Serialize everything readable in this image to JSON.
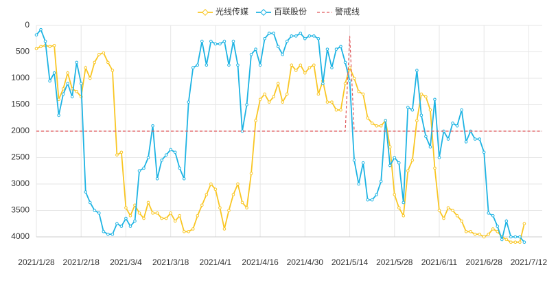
{
  "chart_data": {
    "type": "line",
    "categories": [
      "2021/1/28",
      null,
      null,
      null,
      null,
      null,
      null,
      null,
      null,
      null,
      "2021/2/18",
      null,
      null,
      null,
      null,
      null,
      null,
      null,
      null,
      null,
      "2021/3/4",
      null,
      null,
      null,
      null,
      null,
      null,
      null,
      null,
      null,
      "2021/3/18",
      null,
      null,
      null,
      null,
      null,
      null,
      null,
      null,
      null,
      "2021/4/1",
      null,
      null,
      null,
      null,
      null,
      null,
      null,
      null,
      null,
      "2021/4/16",
      null,
      null,
      null,
      null,
      null,
      null,
      null,
      null,
      null,
      "2021/4/30",
      null,
      null,
      null,
      null,
      null,
      null,
      null,
      null,
      null,
      "2021/5/14",
      null,
      null,
      null,
      null,
      null,
      null,
      null,
      null,
      null,
      "2021/5/28",
      null,
      null,
      null,
      null,
      null,
      null,
      null,
      null,
      null,
      "2021/6/11",
      null,
      null,
      null,
      null,
      null,
      null,
      null,
      null,
      null,
      "2021/6/28",
      null,
      null,
      null,
      null,
      null,
      null,
      null,
      null,
      null,
      "2021/7/12",
      null,
      null,
      null
    ],
    "series": [
      {
        "name": "光线传媒",
        "color": "#f9c623",
        "marker": true,
        "values": [
          440,
          400,
          380,
          400,
          380,
          1400,
          1200,
          900,
          1200,
          1250,
          1350,
          800,
          1000,
          700,
          550,
          520,
          700,
          850,
          2450,
          2400,
          3450,
          3600,
          3400,
          3550,
          3650,
          3350,
          3550,
          3550,
          3650,
          3650,
          3550,
          3700,
          3600,
          3900,
          3900,
          3850,
          3600,
          3400,
          3200,
          3000,
          3100,
          3450,
          3850,
          3500,
          3200,
          3000,
          3350,
          3450,
          2800,
          1800,
          1400,
          1300,
          1450,
          1350,
          1100,
          1450,
          1300,
          750,
          850,
          750,
          900,
          800,
          750,
          1300,
          1050,
          1450,
          1450,
          1600,
          1600,
          1100,
          800,
          1000,
          1250,
          1300,
          1750,
          1850,
          1900,
          1900,
          1800,
          2300,
          3200,
          3450,
          3600,
          2750,
          2550,
          1800,
          1300,
          1350,
          1600,
          2700,
          3500,
          3650,
          3450,
          3500,
          3600,
          3700,
          3900,
          3900,
          3950,
          3950,
          4000,
          3950,
          3850,
          3900,
          4000,
          4050,
          4100,
          4100,
          4100,
          3750,
          null,
          null,
          null,
          null
        ]
      },
      {
        "name": "百联股份",
        "color": "#1db3e3",
        "marker": true,
        "values": [
          180,
          80,
          300,
          1050,
          900,
          1700,
          1300,
          1100,
          1350,
          700,
          1100,
          3150,
          3350,
          3500,
          3550,
          3900,
          3950,
          3950,
          3750,
          3800,
          3650,
          3800,
          3700,
          2750,
          2700,
          2500,
          1900,
          2900,
          2550,
          2450,
          2350,
          2400,
          2700,
          2900,
          1450,
          800,
          750,
          300,
          750,
          300,
          350,
          350,
          300,
          750,
          300,
          750,
          2000,
          1500,
          550,
          450,
          750,
          250,
          150,
          150,
          400,
          550,
          300,
          200,
          200,
          150,
          250,
          200,
          200,
          250,
          1100,
          450,
          800,
          450,
          400,
          700,
          1050,
          2550,
          3000,
          2600,
          3300,
          3300,
          3200,
          2950,
          1800,
          2650,
          2500,
          2600,
          3350,
          1550,
          1600,
          850,
          1700,
          2100,
          2300,
          1400,
          2500,
          2000,
          2150,
          1850,
          1900,
          1600,
          2200,
          2000,
          2150,
          2150,
          2400,
          3550,
          3600,
          3800,
          4050,
          3700,
          4000,
          4000,
          4000,
          4100,
          null,
          null,
          null,
          null
        ]
      },
      {
        "name": "警戒线",
        "color": "#e0585b",
        "marker": false,
        "dashed": true,
        "values": [
          2000,
          2000,
          2000,
          2000,
          2000,
          2000,
          2000,
          2000,
          2000,
          2000,
          2000,
          2000,
          2000,
          2000,
          2000,
          2000,
          2000,
          2000,
          2000,
          2000,
          2000,
          2000,
          2000,
          2000,
          2000,
          2000,
          2000,
          2000,
          2000,
          2000,
          2000,
          2000,
          2000,
          2000,
          2000,
          2000,
          2000,
          2000,
          2000,
          2000,
          2000,
          2000,
          2000,
          2000,
          2000,
          2000,
          2000,
          2000,
          2000,
          2000,
          2000,
          2000,
          2000,
          2000,
          2000,
          2000,
          2000,
          2000,
          2000,
          2000,
          2000,
          2000,
          2000,
          2000,
          2000,
          2000,
          2000,
          2000,
          2000,
          2000,
          200,
          2000,
          2000,
          2000,
          2000,
          2000,
          2000,
          2000,
          2000,
          2000,
          2000,
          2000,
          2000,
          2000,
          2000,
          2000,
          2000,
          2000,
          2000,
          2000,
          2000,
          2000,
          2000,
          2000,
          2000,
          2000,
          2000,
          2000,
          2000,
          2000,
          2000,
          2000,
          2000,
          2000,
          2000,
          2000,
          2000,
          2000,
          2000,
          2000,
          2000,
          2000,
          2000,
          2000
        ]
      }
    ],
    "ylim": [
      0,
      4000
    ],
    "yticks": [
      0,
      500,
      1000,
      1500,
      2000,
      2500,
      3000,
      3500,
      4000
    ],
    "inverse": true,
    "grid": true,
    "legend": "top"
  }
}
